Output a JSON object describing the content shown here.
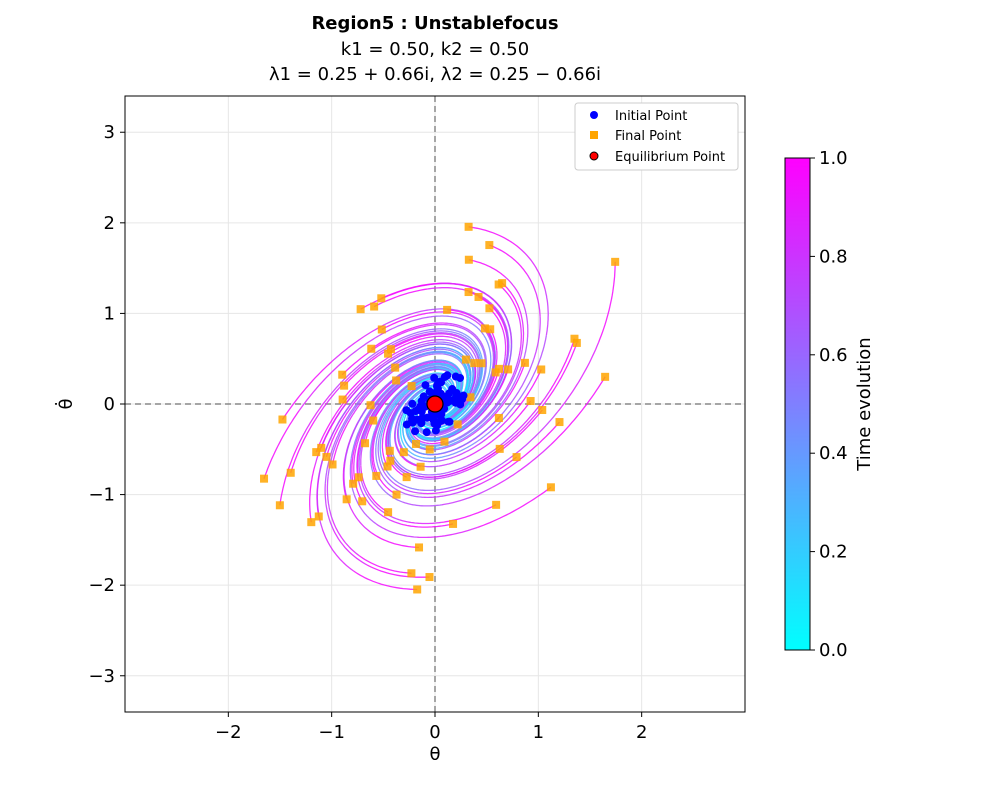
{
  "chart_data": {
    "type": "scatter",
    "title": "Region5 : Unstablefocus",
    "subtitle_k": "k1 = 0.50, k2 = 0.50",
    "subtitle_lambda": "λ1 = 0.25 + 0.66i, λ2 = 0.25 − 0.66i",
    "xlabel": "θ",
    "ylabel": "θ̇",
    "xlim": [
      -3,
      3
    ],
    "ylim": [
      -3.4,
      3.4
    ],
    "xticks": [
      -2,
      -1,
      0,
      1,
      2
    ],
    "xtick_labels": [
      "−2",
      "−1",
      "0",
      "1",
      "2"
    ],
    "yticks": [
      -3,
      -2,
      -1,
      0,
      1,
      2,
      3
    ],
    "ytick_labels": [
      "−3",
      "−2",
      "−1",
      "0",
      "1",
      "2",
      "3"
    ],
    "grid": true,
    "legend": {
      "placement": "top-right",
      "entries": [
        {
          "label": "Initial Point",
          "marker": "circle",
          "color": "#0000ff"
        },
        {
          "label": "Final Point",
          "marker": "square",
          "color": "#ffa500"
        },
        {
          "label": "Equilibrium Point",
          "marker": "circle",
          "color": "#ff0000"
        }
      ]
    },
    "colorbar": {
      "label": "Time evolution",
      "min": 0.0,
      "max": 1.0,
      "ticks": [
        "0.0",
        "0.2",
        "0.4",
        "0.6",
        "0.8",
        "1.0"
      ],
      "colormap": "cool",
      "color_start": "#00ffff",
      "color_end": "#ff00ff"
    },
    "eigenvalues": {
      "real": 0.25,
      "imag": 0.66
    },
    "equilibrium_point": {
      "x": 0,
      "y": 0
    },
    "trajectory_count": 80
  }
}
